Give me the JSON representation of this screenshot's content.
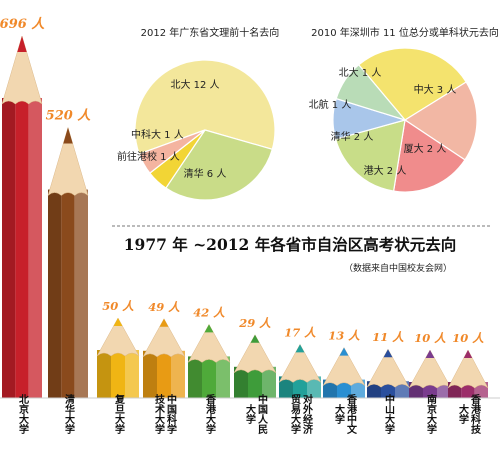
{
  "chart_data": [
    {
      "type": "pie",
      "title": "2012 年广东省文理前十名去向",
      "slices": [
        {
          "label": "北大 12 人",
          "value": 12,
          "color": "#f3e79b"
        },
        {
          "label": "清华 6 人",
          "value": 6,
          "color": "#c9dc88"
        },
        {
          "label": "前往港校 1 人",
          "value": 1,
          "color": "#f2d535"
        },
        {
          "label": "中科大 1 人",
          "value": 1,
          "color": "#f4b4a0"
        }
      ]
    },
    {
      "type": "pie",
      "title": "2010 年深圳市 11 位总分或单科状元去向",
      "slices": [
        {
          "label": "中大 3 人",
          "value": 3,
          "color": "#f4e36e"
        },
        {
          "label": "厦大 2 人",
          "value": 2,
          "color": "#f2b7a4"
        },
        {
          "label": "港大 2 人",
          "value": 2,
          "color": "#f08c8c"
        },
        {
          "label": "清华 2 人",
          "value": 2,
          "color": "#c8dd88"
        },
        {
          "label": "北航 1 人",
          "value": 1,
          "color": "#a9c6ea"
        },
        {
          "label": "北大 1 人",
          "value": 1,
          "color": "#b9dcb7"
        }
      ]
    },
    {
      "type": "bar",
      "title": "1977 年 ~2012 年各省市自治区高考状元去向",
      "subtitle": "（数据来自中国校友会网）",
      "categories": [
        "北京大学",
        "清华大学",
        "复旦大学",
        "中国科学技术大学",
        "香港大学",
        "中国人民大学",
        "对外经济贸易大学",
        "香港中文大学",
        "中山大学",
        "南京大学",
        "香港科技大学"
      ],
      "category_labels": [
        [
          "北京大学"
        ],
        [
          "清华大学"
        ],
        [
          "复旦大学"
        ],
        [
          "中国科学",
          "技术大学"
        ],
        [
          "香港大学"
        ],
        [
          "中国人民",
          "大学"
        ],
        [
          "对外经济",
          "贸易大学"
        ],
        [
          "香港中文",
          "大学"
        ],
        [
          "中山大学"
        ],
        [
          "南京大学"
        ],
        [
          "香港科技",
          "大学"
        ]
      ],
      "values": [
        696,
        520,
        50,
        49,
        42,
        29,
        17,
        13,
        11,
        10,
        10
      ],
      "value_labels": [
        "696 人",
        "520 人",
        "50 人",
        "49 人",
        "42 人",
        "29 人",
        "17 人",
        "13 人",
        "11 人",
        "10 人",
        "10 人"
      ],
      "colors": [
        "#c7202a",
        "#8a4a1c",
        "#f0b514",
        "#e89b14",
        "#4faa3a",
        "#3e9c3a",
        "#22a19a",
        "#2a8fd2",
        "#2a4f9e",
        "#7a3c8e",
        "#9c2e6a"
      ]
    }
  ]
}
